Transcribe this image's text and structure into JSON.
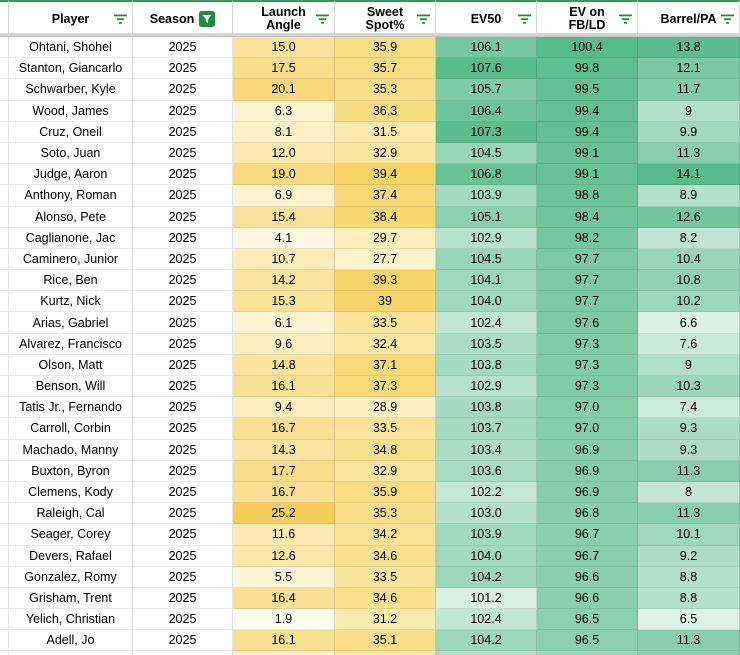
{
  "table": {
    "columns": [
      {
        "key": "player",
        "label": "Player",
        "filter": "lines"
      },
      {
        "key": "season",
        "label": "Season",
        "filter": "active"
      },
      {
        "key": "launch_angle",
        "label": "Launch Angle",
        "filter": "lines",
        "gradient": "launch_angle"
      },
      {
        "key": "sweet_spot",
        "label": "Sweet Spot%",
        "filter": "lines",
        "gradient": "sweet_spot"
      },
      {
        "key": "ev50",
        "label": "EV50",
        "filter": "lines",
        "gradient": "ev50"
      },
      {
        "key": "ev_on_fbld",
        "label": "EV on FB/LD",
        "filter": "lines",
        "gradient": "ev_on_fbld"
      },
      {
        "key": "barrel_pa",
        "label": "Barrel/PA",
        "filter": "lines",
        "gradient": "barrel_pa"
      }
    ],
    "rows": [
      {
        "player": "Ohtani, Shohei",
        "season": "2025",
        "launch_angle": "15.0",
        "sweet_spot": "35.9",
        "ev50": "106.1",
        "ev_on_fbld": "100.4",
        "barrel_pa": "13.8"
      },
      {
        "player": "Stanton, Giancarlo",
        "season": "2025",
        "launch_angle": "17.5",
        "sweet_spot": "35.7",
        "ev50": "107.6",
        "ev_on_fbld": "99.8",
        "barrel_pa": "12.1"
      },
      {
        "player": "Schwarber, Kyle",
        "season": "2025",
        "launch_angle": "20.1",
        "sweet_spot": "35.3",
        "ev50": "105.7",
        "ev_on_fbld": "99.5",
        "barrel_pa": "11.7"
      },
      {
        "player": "Wood, James",
        "season": "2025",
        "launch_angle": "6.3",
        "sweet_spot": "36.3",
        "ev50": "106.4",
        "ev_on_fbld": "99.4",
        "barrel_pa": "9"
      },
      {
        "player": "Cruz, Oneil",
        "season": "2025",
        "launch_angle": "8.1",
        "sweet_spot": "31.5",
        "ev50": "107.3",
        "ev_on_fbld": "99.4",
        "barrel_pa": "9.9"
      },
      {
        "player": "Soto, Juan",
        "season": "2025",
        "launch_angle": "12.0",
        "sweet_spot": "32.9",
        "ev50": "104.5",
        "ev_on_fbld": "99.1",
        "barrel_pa": "11.3"
      },
      {
        "player": "Judge, Aaron",
        "season": "2025",
        "launch_angle": "19.0",
        "sweet_spot": "39.4",
        "ev50": "106.8",
        "ev_on_fbld": "99.1",
        "barrel_pa": "14.1"
      },
      {
        "player": "Anthony, Roman",
        "season": "2025",
        "launch_angle": "6.9",
        "sweet_spot": "37.4",
        "ev50": "103.9",
        "ev_on_fbld": "98.8",
        "barrel_pa": "8.9"
      },
      {
        "player": "Alonso, Pete",
        "season": "2025",
        "launch_angle": "15.4",
        "sweet_spot": "38.4",
        "ev50": "105.1",
        "ev_on_fbld": "98.4",
        "barrel_pa": "12.6"
      },
      {
        "player": "Caglianone, Jac",
        "season": "2025",
        "launch_angle": "4.1",
        "sweet_spot": "29.7",
        "ev50": "102.9",
        "ev_on_fbld": "98.2",
        "barrel_pa": "8.2"
      },
      {
        "player": "Caminero, Junior",
        "season": "2025",
        "launch_angle": "10.7",
        "sweet_spot": "27.7",
        "ev50": "104.5",
        "ev_on_fbld": "97.7",
        "barrel_pa": "10.4"
      },
      {
        "player": "Rice, Ben",
        "season": "2025",
        "launch_angle": "14.2",
        "sweet_spot": "39.3",
        "ev50": "104.1",
        "ev_on_fbld": "97.7",
        "barrel_pa": "10.8"
      },
      {
        "player": "Kurtz, Nick",
        "season": "2025",
        "launch_angle": "15.3",
        "sweet_spot": "39",
        "ev50": "104.0",
        "ev_on_fbld": "97.7",
        "barrel_pa": "10.2"
      },
      {
        "player": "Arias, Gabriel",
        "season": "2025",
        "launch_angle": "6.1",
        "sweet_spot": "33.5",
        "ev50": "102.4",
        "ev_on_fbld": "97.6",
        "barrel_pa": "6.6"
      },
      {
        "player": "Alvarez, Francisco",
        "season": "2025",
        "launch_angle": "9.6",
        "sweet_spot": "32.4",
        "ev50": "103.5",
        "ev_on_fbld": "97.3",
        "barrel_pa": "7.6"
      },
      {
        "player": "Olson, Matt",
        "season": "2025",
        "launch_angle": "14.8",
        "sweet_spot": "37.1",
        "ev50": "103.8",
        "ev_on_fbld": "97.3",
        "barrel_pa": "9"
      },
      {
        "player": "Benson, Will",
        "season": "2025",
        "launch_angle": "16.1",
        "sweet_spot": "37.3",
        "ev50": "102.9",
        "ev_on_fbld": "97.3",
        "barrel_pa": "10.3"
      },
      {
        "player": "Tatis Jr., Fernando",
        "season": "2025",
        "launch_angle": "9.4",
        "sweet_spot": "28.9",
        "ev50": "103.8",
        "ev_on_fbld": "97.0",
        "barrel_pa": "7.4"
      },
      {
        "player": "Carroll, Corbin",
        "season": "2025",
        "launch_angle": "16.7",
        "sweet_spot": "33.5",
        "ev50": "103.7",
        "ev_on_fbld": "97.0",
        "barrel_pa": "9.3"
      },
      {
        "player": "Machado, Manny",
        "season": "2025",
        "launch_angle": "14.3",
        "sweet_spot": "34.8",
        "ev50": "103.4",
        "ev_on_fbld": "96.9",
        "barrel_pa": "9.3"
      },
      {
        "player": "Buxton, Byron",
        "season": "2025",
        "launch_angle": "17.7",
        "sweet_spot": "32.9",
        "ev50": "103.6",
        "ev_on_fbld": "96.9",
        "barrel_pa": "11.3"
      },
      {
        "player": "Clemens, Kody",
        "season": "2025",
        "launch_angle": "16.7",
        "sweet_spot": "35.9",
        "ev50": "102.2",
        "ev_on_fbld": "96.9",
        "barrel_pa": "8"
      },
      {
        "player": "Raleigh, Cal",
        "season": "2025",
        "launch_angle": "25.2",
        "sweet_spot": "35.3",
        "ev50": "103.0",
        "ev_on_fbld": "96.8",
        "barrel_pa": "11.3"
      },
      {
        "player": "Seager, Corey",
        "season": "2025",
        "launch_angle": "11.6",
        "sweet_spot": "34.2",
        "ev50": "103.9",
        "ev_on_fbld": "96.7",
        "barrel_pa": "10.1"
      },
      {
        "player": "Devers, Rafael",
        "season": "2025",
        "launch_angle": "12.6",
        "sweet_spot": "34.6",
        "ev50": "104.0",
        "ev_on_fbld": "96.7",
        "barrel_pa": "9.2"
      },
      {
        "player": "Gonzalez, Romy",
        "season": "2025",
        "launch_angle": "5.5",
        "sweet_spot": "33.5",
        "ev50": "104.2",
        "ev_on_fbld": "96.6",
        "barrel_pa": "8.8"
      },
      {
        "player": "Grisham, Trent",
        "season": "2025",
        "launch_angle": "16.4",
        "sweet_spot": "34.6",
        "ev50": "101.2",
        "ev_on_fbld": "96.6",
        "barrel_pa": "8.8"
      },
      {
        "player": "Yelich, Christian",
        "season": "2025",
        "launch_angle": "1.9",
        "sweet_spot": "31.2",
        "ev50": "102.4",
        "ev_on_fbld": "96.5",
        "barrel_pa": "6.5"
      },
      {
        "player": "Adell, Jo",
        "season": "2025",
        "launch_angle": "16.1",
        "sweet_spot": "35.1",
        "ev50": "104.2",
        "ev_on_fbld": "96.5",
        "barrel_pa": "11.3"
      }
    ],
    "partial_row_colors": [
      "#ffffff",
      "#ffffff",
      "#ffffff",
      "#FCF4D0",
      "#FAE8A1",
      "#AEDFC5",
      "#9AD6B9",
      "#8ED1B0"
    ]
  },
  "gradients": {
    "launch_angle": {
      "min": 1.9,
      "max": 25.2,
      "low": "#FEFCEE",
      "high": "#F6CE5B"
    },
    "sweet_spot": {
      "min": 27.7,
      "max": 39.4,
      "low": "#FCF3CC",
      "high": "#F7D467"
    },
    "ev50": {
      "min": 101.2,
      "max": 107.6,
      "low": "#D9F0E3",
      "high": "#57BB8A"
    },
    "ev_on_fbld": {
      "min": 96.5,
      "max": 100.4,
      "low": "#8BD0AE",
      "high": "#57BB8A"
    },
    "barrel_pa": {
      "min": 6.5,
      "max": 14.1,
      "low": "#DDF1E6",
      "high": "#58BB8B"
    }
  },
  "colors": {
    "filter_icon_green": "#1E8E3E",
    "active_filter_bg": "#1E8E3E",
    "top_border_green": "#2F9E54",
    "freeze_bar_gray": "#D5D5D5"
  }
}
